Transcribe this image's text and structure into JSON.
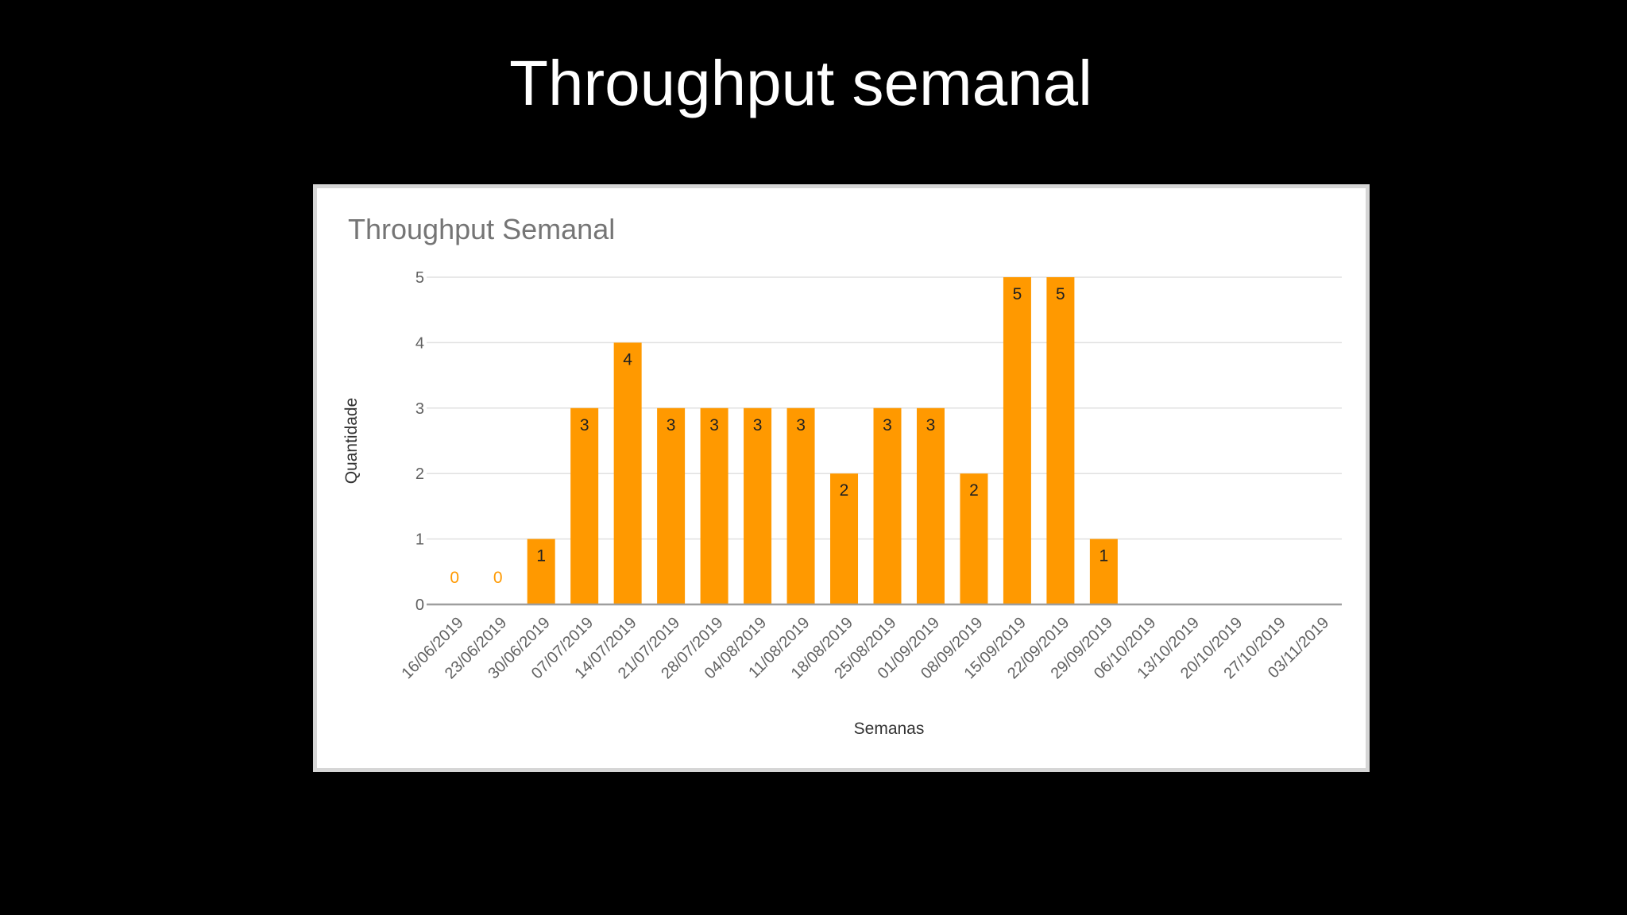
{
  "slide": {
    "title": "Throughput semanal"
  },
  "colors": {
    "background": "#000000",
    "bar": "#ff9900",
    "zero_label": "#ff9900",
    "grid": "#e0e0e0",
    "baseline": "#9e9e9e"
  },
  "chart_data": {
    "type": "bar",
    "title": "Throughput Semanal",
    "xlabel": "Semanas",
    "ylabel": "Quantidade",
    "ylim": [
      0,
      5
    ],
    "yticks": [
      0,
      1,
      2,
      3,
      4,
      5
    ],
    "grid": true,
    "legend": "none",
    "categories": [
      "16/06/2019",
      "23/06/2019",
      "30/06/2019",
      "07/07/2019",
      "14/07/2019",
      "21/07/2019",
      "28/07/2019",
      "04/08/2019",
      "11/08/2019",
      "18/08/2019",
      "25/08/2019",
      "01/09/2019",
      "08/09/2019",
      "15/09/2019",
      "22/09/2019",
      "29/09/2019",
      "06/10/2019",
      "13/10/2019",
      "20/10/2019",
      "27/10/2019",
      "03/11/2019"
    ],
    "values": [
      0,
      0,
      1,
      3,
      4,
      3,
      3,
      3,
      3,
      2,
      3,
      3,
      2,
      5,
      5,
      1,
      null,
      null,
      null,
      null,
      null
    ],
    "data_labels": [
      "0",
      "0",
      "1",
      "3",
      "4",
      "3",
      "3",
      "3",
      "3",
      "2",
      "3",
      "3",
      "2",
      "5",
      "5",
      "1",
      "",
      "",
      "",
      "",
      ""
    ]
  }
}
